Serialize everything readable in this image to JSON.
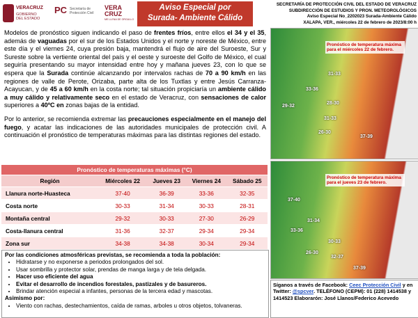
{
  "logos": {
    "veracruz": [
      "VERACRUZ",
      "GOBIERNO DEL ESTADO"
    ],
    "pc": [
      "PC",
      "Secretaría de Protección Civil"
    ],
    "orgullo": [
      "VERA",
      "CRUZ",
      "ME LLENA DE ORGULLO"
    ]
  },
  "header": {
    "title": [
      "Aviso Especial por",
      "Surada- Ambiente Cálido"
    ],
    "agency": [
      "SECRETARÍA DE PROTECCIÓN CIVIL DEL ESTADO DE VERACRUZ",
      "SUBDIRECCIÓN DE ESTUDIOS Y PRON. METEOROLÓGICOS",
      "Aviso Especial No_2202023 Surada-Ambiente Cálido",
      "XALAPA, VER., miércoles 22 de febrero de 2023/8:00 h"
    ]
  },
  "intro": {
    "p1": [
      "Modelos de pronóstico siguen indicando el paso de ",
      "frentes fríos",
      ", entre ellos ",
      "el 34 y el 35",
      ", además de ",
      "vaguadas",
      " por el sur de los Estados Unidos y el norte y noreste de México, entre este día y el viernes 24, cuya presión baja, mantendrá el flujo de aire del Suroeste, Sur y Sureste sobre la vertiente oriental del país y el oeste y suroeste del Golfo de México, el cual seguiría presentando su mayor intensidad entre hoy y mañana jueves 23, con lo que se espera que la ",
      "Surada",
      " continúe alcanzando por intervalos rachas de ",
      "70 a 90 km/h",
      " en las regiones de valle de Perote, Orizaba, parte alta de los Tuxtlas y entre Jesús Carranza-Acayucan, y de ",
      "45 a 60 km/h",
      " en la costa norte; tal situación propiciaría un ",
      "ambiente cálido a muy cálido y relativamente seco",
      " en el estado de Veracruz, con ",
      "sensaciones de calor",
      " superiores a ",
      "40ºC en",
      " zonas bajas de la entidad."
    ],
    "p2": [
      "Por lo anterior, se recomienda extremar las ",
      "precauciones especialmente en el manejo del fuego",
      ", y acatar las indicaciones de las autoridades municipales de protección civil. A continuación el pronóstico de temperaturas máximas para las distintas regiones del estado."
    ]
  },
  "table": {
    "title": "Pronóstico de temperaturas máximas (°C)",
    "header": [
      "Región",
      "Miércoles 22",
      "Jueves 23",
      "Viernes 24",
      "Sábado 25"
    ],
    "rows": [
      [
        "Llanura norte-Huasteca",
        "37-40",
        "36-39",
        "33-36",
        "32-35"
      ],
      [
        "Costa norte",
        "30-33",
        "31-34",
        "30-33",
        "28-31"
      ],
      [
        "Montaña central",
        "29-32",
        "30-33",
        "27-30",
        "26-29"
      ],
      [
        "Costa-llanura central",
        "31-36",
        "32-37",
        "29-34",
        "29-34"
      ],
      [
        "Zona sur",
        "34-38",
        "34-38",
        "30-34",
        "29-34"
      ]
    ]
  },
  "recommendations": {
    "intro": "Por las condiciones atmosféricas previstas, se recomienda a toda la población:",
    "items": [
      "Hidratarse y no exponerse a periodos prolongados del sol.",
      "Usar sombrilla y protector solar, prendas de manga larga y de tela delgada.",
      "Hacer uso eficiente del agua",
      "Evitar el desarrollo de incendios forestales, pastizales y de basureros.",
      "Brindar atención especial a infantes, personas de la tercera edad y mascotas."
    ],
    "also": "Asimismo por:",
    "also_items": [
      "Viento con rachas, destechamientos, caída de ramas, arboles u otros objetos, tolvaneras."
    ]
  },
  "maps": [
    {
      "caption": "Pronóstico de temperatura máxima para el miércoles 22 de febrero.",
      "labels": [
        "31-33",
        "29-32",
        "28-30",
        "31-33",
        "26-30",
        "37-39",
        "33-36"
      ]
    },
    {
      "caption": "Pronóstico de temperatura máxima para el jueves 23 de febrero.",
      "labels": [
        "37-40",
        "31-34",
        "33-36",
        "30-33",
        "26-30",
        "32-37",
        "37-39"
      ]
    }
  ],
  "footer": [
    "Síganos a través de Facebook: ",
    "Ceec Protección Civil",
    " y en Twitter: ",
    "@spcver",
    ". TELÉFONO (CEPM): 01 (228) 1414538 y 1414523 Elaborarón: José Llanos/Federico Acevedo"
  ]
}
